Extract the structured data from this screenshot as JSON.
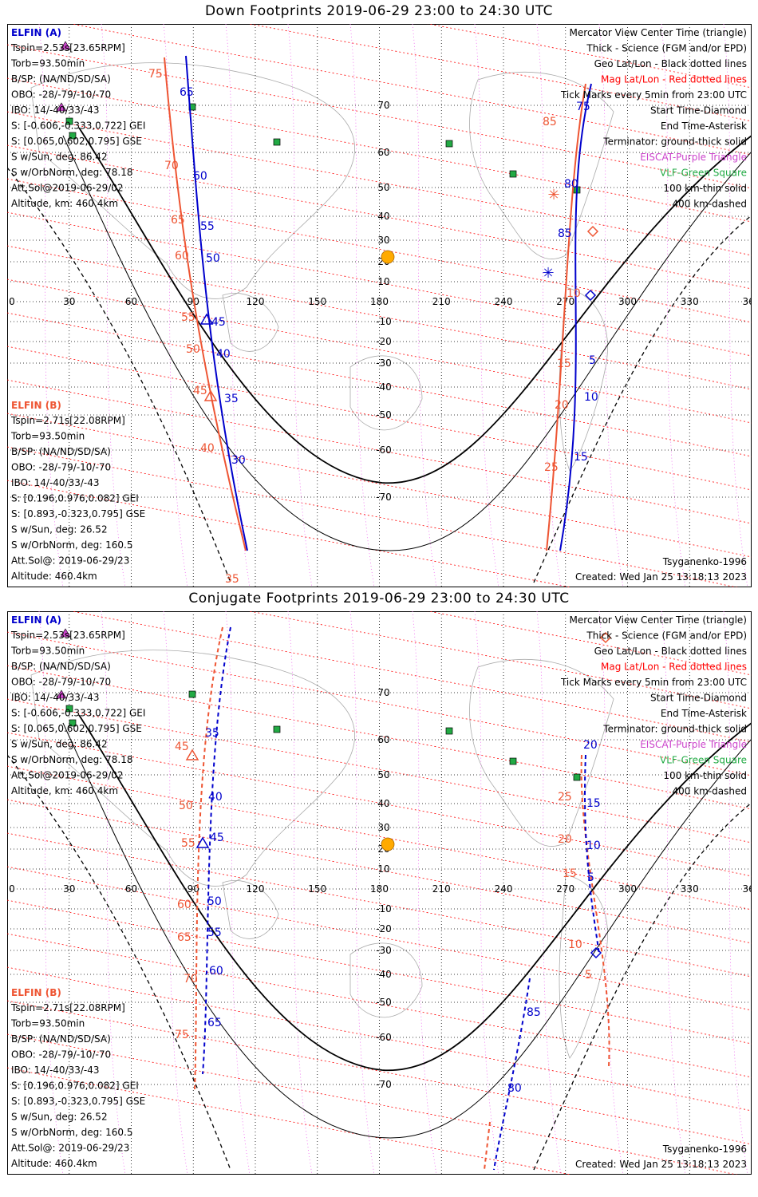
{
  "panels": [
    {
      "title": "Down Footprints 2019-06-29 23:00 to 24:30 UTC",
      "elfin_a": {
        "header": "ELFIN (A)",
        "lines": [
          "Tspin=2.53s[23.65RPM]",
          "Torb=93.50min",
          "B/SP: (NA/ND/SD/SA)",
          "OBO: -28/-79/-10/-70",
          "IBO: 14/-40/33/-43",
          "S: [-0.606,-0.333,0.722] GEI",
          "S: [0.065,0.602,0.795] GSE",
          "S w/Sun, deg: 86.42",
          "S w/OrbNorm, deg: 78.18",
          "Att.Sol@2019-06-29/02",
          "Altitude, km: 460.4km"
        ]
      },
      "elfin_b": {
        "header": "ELFIN (B)",
        "lines": [
          "Tspin=2.71s[22.08RPM]",
          "Torb=93.50min",
          "B/SP: (NA/ND/SD/SA)",
          "OBO: -28/-79/-10/-70",
          "IBO: 14/-40/33/-43",
          "S: [0.196,0.976,0.082] GEI",
          "S: [0.893,-0.323,0.795] GSE",
          "S w/Sun, deg: 26.52",
          "S w/OrbNorm, deg: 160.5",
          "Att.Sol@: 2019-06-29/23",
          "Altitude: 460.4km"
        ]
      },
      "model": "Tsyganenko-1996",
      "created": "Created: Wed Jan 25 13:18:13 2023",
      "labels_a": [
        [
          "65",
          216,
          90
        ],
        [
          "60",
          233,
          195
        ],
        [
          "55",
          242,
          258
        ],
        [
          "50",
          249,
          298
        ],
        [
          "45",
          256,
          378
        ],
        [
          "40",
          262,
          418
        ],
        [
          "35",
          272,
          474
        ],
        [
          "30",
          281,
          551
        ],
        [
          "75",
          713,
          108
        ],
        [
          "80",
          698,
          205
        ],
        [
          "85",
          690,
          267
        ],
        [
          "5",
          729,
          426
        ],
        [
          "10",
          723,
          472
        ],
        [
          "15",
          710,
          547
        ]
      ],
      "labels_b": [
        [
          "75",
          177,
          67
        ],
        [
          "70",
          197,
          182
        ],
        [
          "65",
          205,
          250
        ],
        [
          "60",
          210,
          295
        ],
        [
          "55",
          218,
          372
        ],
        [
          "50",
          224,
          412
        ],
        [
          "45",
          233,
          464
        ],
        [
          "40",
          242,
          536
        ],
        [
          "35",
          273,
          700
        ],
        [
          "85",
          671,
          127
        ],
        [
          "10",
          701,
          342
        ],
        [
          "15",
          689,
          430
        ],
        [
          "20",
          686,
          482
        ],
        [
          "25",
          673,
          560
        ]
      ]
    },
    {
      "title": "Conjugate Footprints 2019-06-29 23:00 to 24:30 UTC",
      "elfin_a": {
        "header": "ELFIN (A)",
        "lines": [
          "Tspin=2.53s[23.65RPM]",
          "Torb=93.50min",
          "B/SP: (NA/ND/SD/SA)",
          "OBO: -28/-79/-10/-70",
          "IBO: 14/-40/33/-43",
          "S: [-0.606,-0.333,0.722] GEI",
          "S: [0.065,0.602,0.795] GSE",
          "S w/Sun, deg: 86.42",
          "S w/OrbNorm, deg: 78.18",
          "Att.Sol@2019-06-29/02",
          "Altitude, km: 460.4km"
        ]
      },
      "elfin_b": {
        "header": "ELFIN (B)",
        "lines": [
          "Tspin=2.71s[22.08RPM]",
          "Torb=93.50min",
          "B/SP: (NA/ND/SD/SA)",
          "OBO: -28/-79/-10/-70",
          "IBO: 14/-40/33/-43",
          "S: [0.196,0.976,0.082] GEI",
          "S: [0.893,-0.323,0.795] GSE",
          "S w/Sun, deg: 26.52",
          "S w/OrbNorm, deg: 160.5",
          "Att.Sol@: 2019-06-29/23",
          "Altitude: 460.4km"
        ]
      },
      "model": "Tsyganenko-1996",
      "created": "Created: Wed Jan 25 13:18:13 2023",
      "labels_a": [
        [
          "35",
          248,
          157
        ],
        [
          "40",
          252,
          237
        ],
        [
          "45",
          254,
          288
        ],
        [
          "50",
          251,
          368
        ],
        [
          "55",
          251,
          407
        ],
        [
          "60",
          253,
          455
        ],
        [
          "65",
          251,
          520
        ],
        [
          "20",
          722,
          172
        ],
        [
          "15",
          726,
          245
        ],
        [
          "10",
          726,
          298
        ],
        [
          "5",
          727,
          338
        ],
        [
          "85",
          651,
          507
        ],
        [
          "80",
          627,
          602
        ]
      ],
      "labels_b": [
        [
          "45",
          210,
          174
        ],
        [
          "50",
          215,
          248
        ],
        [
          "55",
          218,
          295
        ],
        [
          "60",
          213,
          372
        ],
        [
          "65",
          213,
          413
        ],
        [
          "70",
          221,
          465
        ],
        [
          "75",
          210,
          535
        ],
        [
          "25",
          690,
          237
        ],
        [
          "20",
          690,
          290
        ],
        [
          "15",
          696,
          333
        ],
        [
          "10",
          703,
          422
        ],
        [
          "5",
          724,
          460
        ]
      ]
    }
  ],
  "legend": {
    "lines": [
      "Mercator View Center Time (triangle)",
      "Thick - Science (FGM and/or EPD)",
      "Geo Lat/Lon - Black dotted lines",
      "Mag Lat/Lon - Red dotted lines",
      "Tick Marks every 5min from 23:00 UTC",
      "Start Time-Diamond",
      "End Time-Asterisk",
      "Terminator: ground-thick solid",
      "EISCAT-Purple Triangle",
      "VLF-Green Square",
      "100 km-thin solid",
      "400 km-dashed"
    ]
  },
  "lon_ticks": [
    "0",
    "30",
    "60",
    "90",
    "120",
    "150",
    "180",
    "210",
    "240",
    "270",
    "300",
    "330",
    "360"
  ],
  "lat_ticks": [
    "70",
    "60",
    "50",
    "40",
    "30",
    "20",
    "10",
    "-10",
    "-20",
    "-30",
    "-40",
    "-50",
    "-60",
    "-70"
  ],
  "colors": {
    "elfin_a": "#0000cc",
    "elfin_b": "#ee5533",
    "mag_grid": "#ff0000",
    "geo_grid": "#000000",
    "eiscat": "#cc44cc",
    "vlf": "#22aa44",
    "sun": "#ffaa00"
  }
}
